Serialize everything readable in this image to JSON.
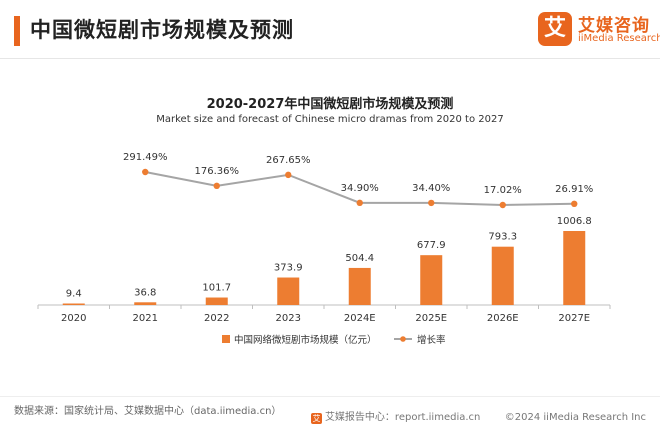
{
  "header": {
    "title": "中国微短剧市场规模及预测",
    "logo_mark": "艾",
    "logo_cn": "艾媒咨询",
    "logo_en": "iiMedia Research"
  },
  "chart_data": {
    "type": "bar",
    "title": "2020-2027年中国微短剧市场规模及预测",
    "subtitle": "Market size and forecast of Chinese micro dramas from 2020 to 2027",
    "categories": [
      "2020",
      "2021",
      "2022",
      "2023",
      "2024E",
      "2025E",
      "2026E",
      "2027E"
    ],
    "series": [
      {
        "name": "中国网络微短剧市场规模（亿元）",
        "type": "bar",
        "values": [
          9.4,
          36.8,
          101.7,
          373.9,
          504.4,
          677.9,
          793.3,
          1006.8
        ],
        "labels": [
          "9.4",
          "36.8",
          "101.7",
          "373.9",
          "504.4",
          "677.9",
          "793.3",
          "1006.8"
        ]
      },
      {
        "name": "增长率",
        "type": "line",
        "values": [
          null,
          291.49,
          176.36,
          267.65,
          34.9,
          34.4,
          17.02,
          26.91
        ],
        "labels": [
          "",
          "291.49%",
          "176.36%",
          "267.65%",
          "34.90%",
          "34.40%",
          "17.02%",
          "26.91%"
        ]
      }
    ],
    "legend_position": "bottom",
    "grid": false,
    "colors": {
      "bar": "#ed7d31",
      "line": "#a5a5a5",
      "marker": "#ed7d31"
    }
  },
  "footer": {
    "source": "数据来源：国家统计局、艾媒数据中心（data.iimedia.cn）",
    "report_center": "艾媒报告中心：report.iimedia.cn",
    "copyright": "©2024  iiMedia Research Inc"
  }
}
